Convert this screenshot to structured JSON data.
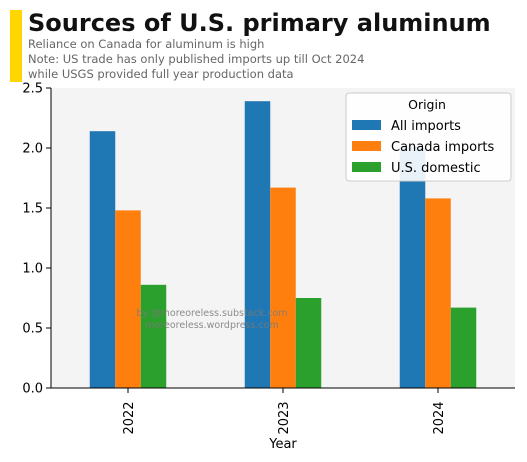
{
  "header": {
    "title": "Sources of U.S. primary aluminum",
    "subtitle_lines": [
      "Reliance on Canada for aluminum is high",
      "Note: US trade has only published imports up till Oct 2024",
      "while USGS provided full year production data"
    ],
    "accent_color": "#FFD600"
  },
  "watermark": {
    "lines": [
      "by @moreoreless.substack.com",
      "moreoreless.wordpress.com"
    ]
  },
  "chart_data": {
    "type": "bar",
    "categories": [
      "2022",
      "2023",
      "2024"
    ],
    "series": [
      {
        "name": "All imports",
        "values": [
          2.14,
          2.39,
          2.01
        ],
        "color": "#1f77b4"
      },
      {
        "name": "Canada imports",
        "values": [
          1.48,
          1.67,
          1.58
        ],
        "color": "#ff7f0e"
      },
      {
        "name": "U.S. domestic",
        "values": [
          0.86,
          0.75,
          0.67
        ],
        "color": "#2ca02c"
      }
    ],
    "xlabel": "Year",
    "ylabel": "",
    "ylim": [
      0,
      2.5
    ],
    "yticks": [
      0.0,
      0.5,
      1.0,
      1.5,
      2.0,
      2.5
    ],
    "ytick_labels": [
      "0.0",
      "0.5",
      "1.0",
      "1.5",
      "2.0",
      "2.5"
    ],
    "legend": {
      "title": "Origin",
      "placement": "top-right"
    },
    "grid": false,
    "plot_background": "#f4f4f4"
  }
}
